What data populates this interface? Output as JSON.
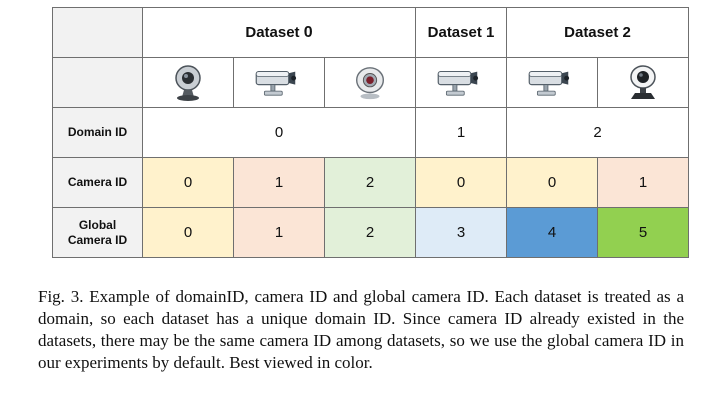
{
  "table": {
    "datasets": [
      {
        "label": "Dataset ",
        "num": "0"
      },
      {
        "label": "Dataset 1"
      },
      {
        "label": "Dataset 2"
      }
    ],
    "icons": [
      "webcam-sphere-icon",
      "cctv-camera-icon",
      "webcam-round-icon",
      "cctv-camera-icon",
      "cctv-camera-icon",
      "webcam-clip-icon"
    ],
    "rows": {
      "domain": {
        "label": "Domain ID",
        "values": [
          "0",
          "1",
          "2"
        ]
      },
      "camera": {
        "label": "Camera ID",
        "values": [
          "0",
          "1",
          "2",
          "0",
          "0",
          "1"
        ]
      },
      "global": {
        "label_line1": "Global",
        "label_line2": "Camera ID",
        "values": [
          "0",
          "1",
          "2",
          "3",
          "4",
          "5"
        ]
      }
    },
    "colors": {
      "yellow": "#fff2cc",
      "peach": "#fbe5d6",
      "light_green": "#e2f0d9",
      "light_blue": "#deebf7",
      "blue": "#5b9bd5",
      "green": "#92d050",
      "empty": "#f2f2f2"
    }
  },
  "caption": "Fig. 3.   Example of domainID, camera ID and global camera ID. Each dataset is treated as a domain, so each dataset has a unique domain ID. Since camera ID already existed in the datasets, there may be the same camera ID among datasets, so we use the global camera ID in our experiments by default. Best viewed in color."
}
